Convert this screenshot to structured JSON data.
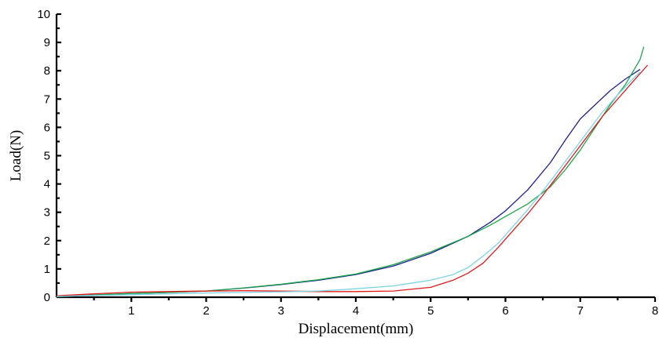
{
  "chart_data": {
    "type": "line",
    "title": "",
    "xlabel": "Displacement(mm)",
    "ylabel": "Load(N)",
    "xlim": [
      0,
      8
    ],
    "ylim": [
      0,
      10
    ],
    "x_ticks": [
      1,
      2,
      3,
      4,
      5,
      6,
      7,
      8
    ],
    "x_tick_labels": [
      "1",
      "2",
      "3",
      "4",
      "5",
      "6",
      "7",
      "8"
    ],
    "y_ticks": [
      0,
      1,
      2,
      3,
      4,
      5,
      6,
      7,
      8,
      9,
      10
    ],
    "y_tick_labels": [
      "0",
      "1",
      "2",
      "3",
      "4",
      "5",
      "6",
      "7",
      "8",
      "9",
      "10"
    ],
    "grid": false,
    "legend": "none",
    "series": [
      {
        "color": "#1f1f8f",
        "x": [
          0,
          0.5,
          1,
          1.5,
          2,
          2.5,
          3,
          3.5,
          4,
          4.5,
          5,
          5.5,
          5.8,
          6,
          6.3,
          6.6,
          6.8,
          7,
          7.2,
          7.4,
          7.6,
          7.8
        ],
        "y": [
          0.02,
          0.08,
          0.13,
          0.17,
          0.22,
          0.32,
          0.45,
          0.6,
          0.8,
          1.1,
          1.55,
          2.15,
          2.65,
          3.05,
          3.8,
          4.75,
          5.55,
          6.3,
          6.8,
          7.3,
          7.7,
          8.05
        ]
      },
      {
        "color": "#1aa84a",
        "x": [
          0,
          0.5,
          1,
          1.5,
          2,
          2.5,
          3,
          3.5,
          4,
          4.5,
          5,
          5.5,
          5.8,
          6,
          6.3,
          6.6,
          6.8,
          7,
          7.2,
          7.4,
          7.6,
          7.8,
          7.85
        ],
        "y": [
          0.02,
          0.08,
          0.13,
          0.17,
          0.22,
          0.33,
          0.46,
          0.62,
          0.82,
          1.15,
          1.6,
          2.15,
          2.55,
          2.85,
          3.3,
          3.9,
          4.5,
          5.2,
          6.0,
          6.8,
          7.5,
          8.4,
          8.85
        ]
      },
      {
        "color": "#e01b1b",
        "x": [
          0,
          0.5,
          1,
          1.5,
          2,
          2.5,
          3,
          3.5,
          4,
          4.5,
          5,
          5.3,
          5.5,
          5.7,
          5.9,
          6.1,
          6.3,
          6.5,
          6.7,
          6.9,
          7.1,
          7.3,
          7.5,
          7.7,
          7.9
        ],
        "y": [
          0.05,
          0.12,
          0.18,
          0.2,
          0.22,
          0.23,
          0.22,
          0.2,
          0.2,
          0.22,
          0.35,
          0.6,
          0.85,
          1.2,
          1.75,
          2.35,
          2.95,
          3.6,
          4.3,
          5.0,
          5.7,
          6.4,
          7.0,
          7.6,
          8.2
        ]
      },
      {
        "color": "#7fd3e6",
        "x": [
          0,
          0.5,
          1,
          1.5,
          2,
          2.5,
          3,
          3.5,
          4,
          4.5,
          5,
          5.3,
          5.5,
          5.7,
          5.9,
          6.1,
          6.3,
          6.5,
          6.7,
          6.9,
          7.1,
          7.3,
          7.5,
          7.7,
          7.8
        ],
        "y": [
          0.03,
          0.06,
          0.09,
          0.12,
          0.15,
          0.17,
          0.19,
          0.22,
          0.3,
          0.4,
          0.6,
          0.8,
          1.05,
          1.45,
          1.9,
          2.5,
          3.1,
          3.75,
          4.45,
          5.15,
          5.85,
          6.55,
          7.15,
          7.7,
          7.95
        ]
      }
    ]
  }
}
